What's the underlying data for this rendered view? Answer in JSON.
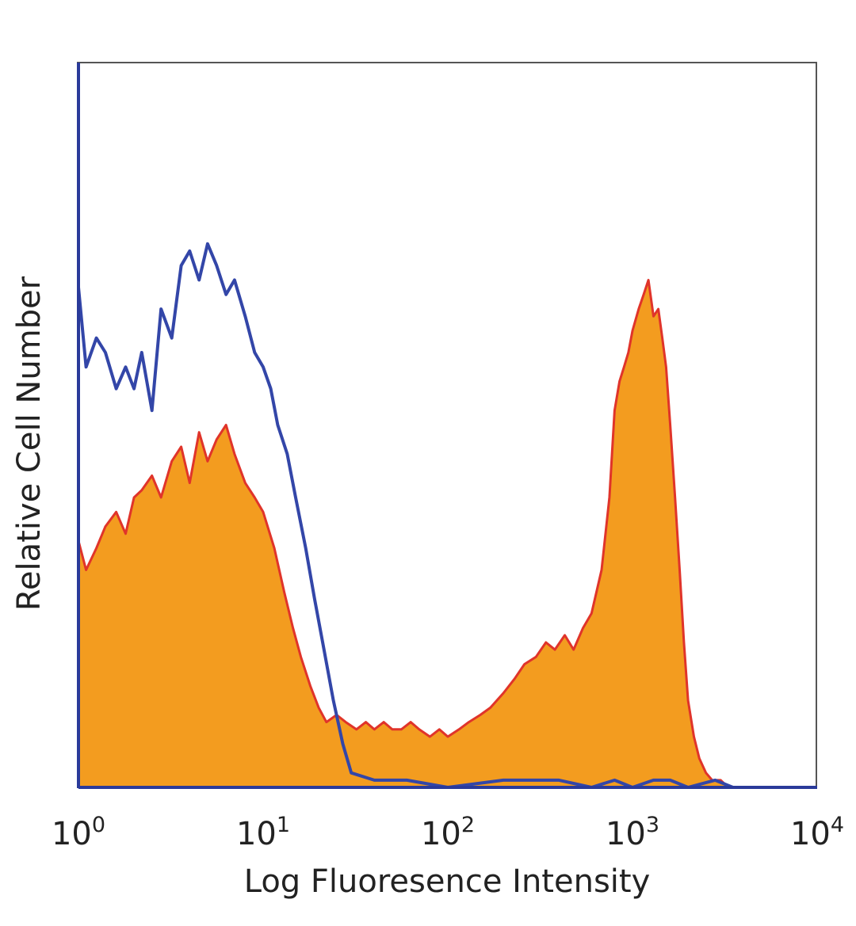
{
  "chart_data": {
    "type": "area",
    "xlabel": "Log Fluoresence Intensity",
    "ylabel": "Relative Cell Number",
    "x_scale": "log",
    "xlim": [
      1,
      10000
    ],
    "ylim": [
      0,
      100
    ],
    "grid": false,
    "x_ticks": [
      {
        "value": 1,
        "base": "10",
        "exp": "0"
      },
      {
        "value": 10,
        "base": "10",
        "exp": "1"
      },
      {
        "value": 100,
        "base": "10",
        "exp": "2"
      },
      {
        "value": 1000,
        "base": "10",
        "exp": "3"
      },
      {
        "value": 10000,
        "base": "10",
        "exp": "4"
      }
    ],
    "series": [
      {
        "style": "filled",
        "fill": "#f39c1f",
        "stroke": "#e0342a",
        "x": [
          1,
          1.1,
          1.25,
          1.4,
          1.6,
          1.8,
          2.0,
          2.2,
          2.5,
          2.8,
          3.2,
          3.6,
          4.0,
          4.5,
          5.0,
          5.6,
          6.3,
          7.0,
          8.0,
          9.0,
          10,
          11.5,
          13,
          14.5,
          16,
          18,
          20,
          22,
          25,
          28,
          32,
          36,
          40,
          45,
          50,
          56,
          63,
          70,
          80,
          90,
          100,
          115,
          130,
          150,
          170,
          200,
          230,
          260,
          300,
          340,
          380,
          430,
          480,
          540,
          600,
          680,
          750,
          800,
          850,
          900,
          950,
          1000,
          1080,
          1150,
          1220,
          1300,
          1380,
          1450,
          1520,
          1600,
          1700,
          1800,
          1900,
          2000,
          2150,
          2300,
          2500,
          2700,
          3000,
          3300,
          3700
        ],
        "values": [
          34,
          30,
          33,
          36,
          38,
          35,
          40,
          41,
          43,
          40,
          45,
          47,
          42,
          49,
          45,
          48,
          50,
          46,
          42,
          40,
          38,
          33,
          27,
          22,
          18,
          14,
          11,
          9,
          10,
          9,
          8,
          9,
          8,
          9,
          8,
          8,
          9,
          8,
          7,
          8,
          7,
          8,
          9,
          10,
          11,
          13,
          15,
          17,
          18,
          20,
          19,
          21,
          19,
          22,
          24,
          30,
          40,
          52,
          56,
          58,
          60,
          63,
          66,
          68,
          70,
          65,
          66,
          62,
          58,
          50,
          40,
          30,
          20,
          12,
          7,
          4,
          2,
          1,
          1,
          0,
          0
        ]
      },
      {
        "style": "line",
        "stroke": "#3346a8",
        "x": [
          1,
          1.1,
          1.25,
          1.4,
          1.6,
          1.8,
          2.0,
          2.2,
          2.5,
          2.8,
          3.2,
          3.6,
          4.0,
          4.5,
          5.0,
          5.6,
          6.3,
          7.0,
          8.0,
          9.0,
          10,
          11,
          12,
          13.5,
          15,
          17,
          19,
          21,
          24,
          27,
          30,
          40,
          60,
          100,
          200,
          400,
          600,
          800,
          1000,
          1300,
          1600,
          2000,
          2800,
          3500,
          4500,
          10000
        ],
        "values": [
          69,
          58,
          62,
          60,
          55,
          58,
          55,
          60,
          52,
          66,
          62,
          72,
          74,
          70,
          75,
          72,
          68,
          70,
          65,
          60,
          58,
          55,
          50,
          46,
          40,
          33,
          26,
          20,
          12,
          6,
          2,
          1,
          1,
          0,
          1,
          1,
          0,
          1,
          0,
          1,
          1,
          0,
          1,
          0,
          0,
          0
        ]
      }
    ]
  }
}
